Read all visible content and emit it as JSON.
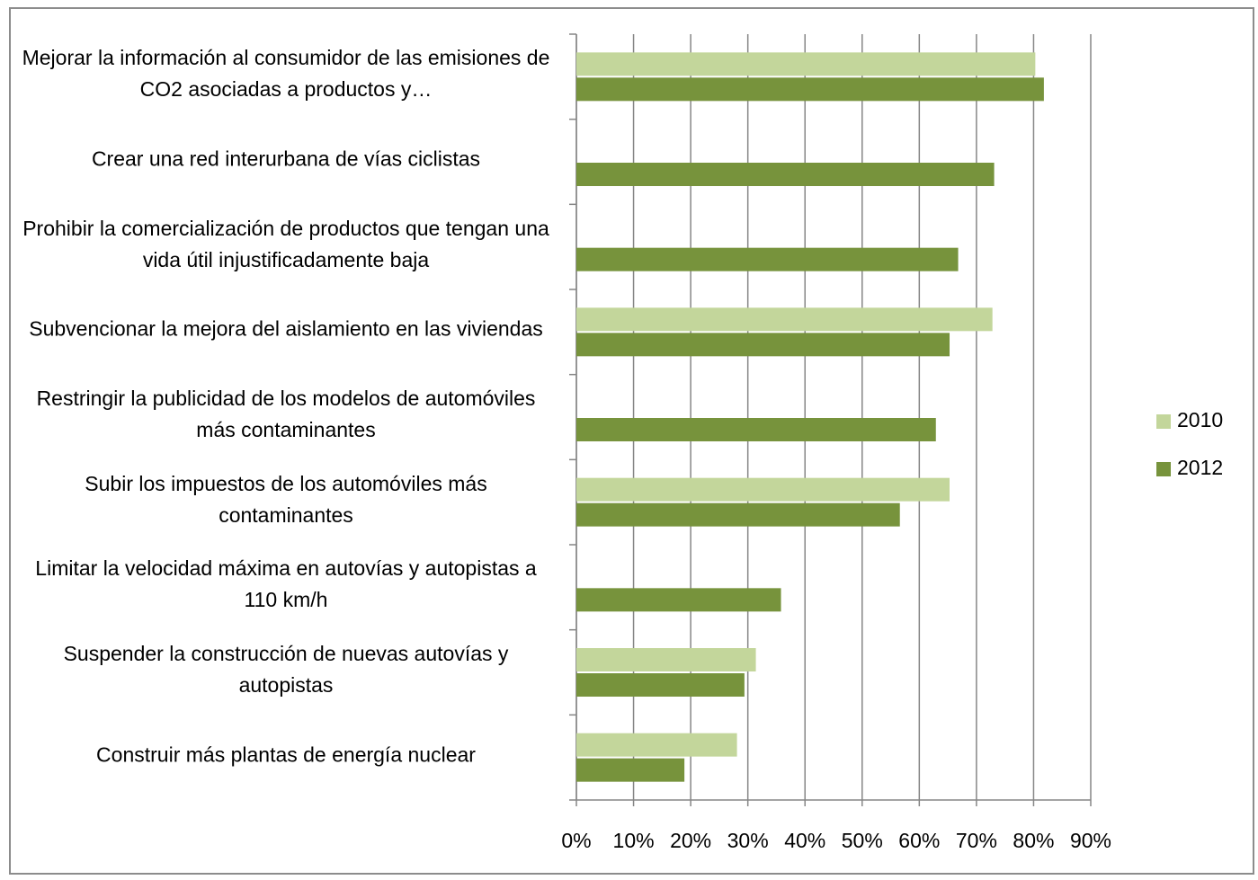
{
  "chart_data": {
    "type": "bar",
    "orientation": "horizontal",
    "categories": [
      "Mejorar la información al consumidor de las emisiones de CO2 asociadas a productos y…",
      "Crear una red interurbana de vías ciclistas",
      "Prohibir la comercialización de productos que tengan una vida útil injustificadamente baja",
      "Subvencionar la mejora del aislamiento en las viviendas",
      "Restringir la publicidad de los modelos de automóviles más contaminantes",
      "Subir los impuestos de los automóviles más contaminantes",
      "Limitar la velocidad máxima en autovías y autopistas a 110 km/h",
      "Suspender la construcción de nuevas autovías y autopistas",
      "Construir más plantas de energía nuclear"
    ],
    "series": [
      {
        "name": "2010",
        "color": "#c3d69b",
        "values": [
          80.3,
          null,
          null,
          72.8,
          null,
          65.3,
          null,
          31.4,
          28.1
        ]
      },
      {
        "name": "2012",
        "color": "#77933c",
        "values": [
          81.8,
          73.1,
          66.8,
          65.3,
          62.9,
          56.6,
          35.8,
          29.4,
          18.9
        ]
      }
    ],
    "xlim": [
      0,
      90
    ],
    "xticks": [
      {
        "value": 0,
        "label": "0%"
      },
      {
        "value": 10,
        "label": "10%"
      },
      {
        "value": 20,
        "label": "20%"
      },
      {
        "value": 30,
        "label": "30%"
      },
      {
        "value": 40,
        "label": "40%"
      },
      {
        "value": 50,
        "label": "50%"
      },
      {
        "value": 60,
        "label": "60%"
      },
      {
        "value": 70,
        "label": "70%"
      },
      {
        "value": 80,
        "label": "80%"
      },
      {
        "value": 90,
        "label": "90%"
      }
    ],
    "grid": true,
    "legend": "right"
  }
}
